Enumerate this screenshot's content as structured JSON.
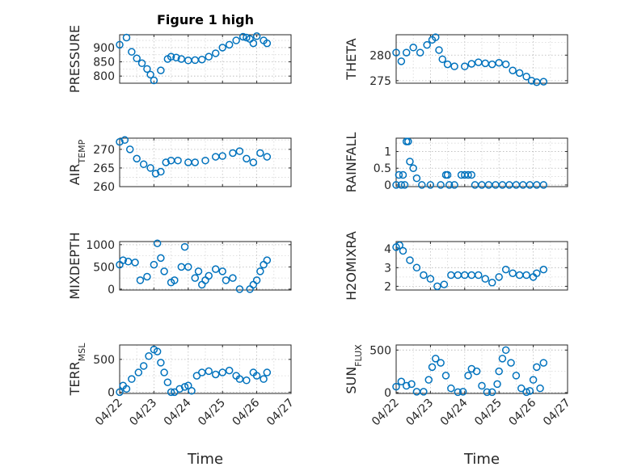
{
  "chart_data": [
    {
      "id": "pressure",
      "type": "scatter",
      "title": "Figure 1 high",
      "xlabel": "",
      "ylabel": "PRESSURE",
      "ylim": [
        775,
        945
      ],
      "yticks": [
        800,
        850,
        900
      ],
      "xlim": [
        0,
        5
      ],
      "xticks": [
        0,
        1,
        2,
        3,
        4,
        5
      ],
      "xticklabels": [],
      "x": [
        0.0,
        0.2,
        0.35,
        0.5,
        0.65,
        0.8,
        0.9,
        1.0,
        1.2,
        1.4,
        1.5,
        1.65,
        1.8,
        2.0,
        2.2,
        2.4,
        2.6,
        2.8,
        3.0,
        3.2,
        3.4,
        3.6,
        3.7,
        3.8,
        3.9,
        4.0,
        4.2,
        4.3
      ],
      "y": [
        910,
        935,
        885,
        862,
        845,
        825,
        805,
        785,
        820,
        860,
        868,
        865,
        860,
        855,
        856,
        858,
        868,
        880,
        900,
        910,
        925,
        938,
        935,
        930,
        915,
        940,
        925,
        915
      ]
    },
    {
      "id": "theta",
      "type": "scatter",
      "title": "",
      "xlabel": "",
      "ylabel": "THETA",
      "ylim": [
        274.5,
        284
      ],
      "yticks": [
        275,
        280
      ],
      "xlim": [
        0,
        5
      ],
      "xticks": [
        0,
        1,
        2,
        3,
        4,
        5
      ],
      "xticklabels": [],
      "x": [
        0.0,
        0.15,
        0.3,
        0.5,
        0.7,
        0.9,
        1.05,
        1.15,
        1.25,
        1.35,
        1.5,
        1.7,
        2.0,
        2.2,
        2.4,
        2.6,
        2.8,
        3.0,
        3.2,
        3.4,
        3.6,
        3.8,
        3.95,
        4.1,
        4.3
      ],
      "y": [
        280.5,
        278.8,
        280.5,
        281.5,
        280.5,
        282,
        283,
        283.5,
        281,
        279.2,
        278.2,
        277.8,
        277.8,
        278.3,
        278.6,
        278.4,
        278.2,
        278.5,
        278.2,
        277,
        276.5,
        275.8,
        275,
        274.7,
        274.8
      ]
    },
    {
      "id": "air_temp",
      "type": "scatter",
      "title": "",
      "xlabel": "",
      "ylabel": "AIR_TEMP",
      "ylim": [
        260,
        273
      ],
      "yticks": [
        260,
        265,
        270
      ],
      "xlim": [
        0,
        5
      ],
      "xticks": [
        0,
        1,
        2,
        3,
        4,
        5
      ],
      "xticklabels": [],
      "x": [
        0.0,
        0.15,
        0.3,
        0.5,
        0.7,
        0.9,
        1.05,
        1.2,
        1.35,
        1.5,
        1.7,
        2.0,
        2.2,
        2.5,
        2.8,
        3.0,
        3.3,
        3.5,
        3.7,
        3.9,
        4.1,
        4.3
      ],
      "y": [
        272,
        272.5,
        270,
        267.5,
        266,
        265,
        263.5,
        264,
        266.5,
        267,
        267,
        266.5,
        266.5,
        267,
        268,
        268.2,
        269,
        269.5,
        267.5,
        266.5,
        269,
        268
      ]
    },
    {
      "id": "rainfall",
      "type": "scatter",
      "title": "",
      "xlabel": "",
      "ylabel": "RAINFALL",
      "ylim": [
        -0.05,
        1.4
      ],
      "yticks": [
        0,
        0.5,
        1
      ],
      "xlim": [
        0,
        5
      ],
      "xticks": [
        0,
        1,
        2,
        3,
        4,
        5
      ],
      "xticklabels": [],
      "x": [
        0.0,
        0.08,
        0.15,
        0.2,
        0.25,
        0.3,
        0.35,
        0.4,
        0.5,
        0.6,
        0.75,
        1.0,
        1.3,
        1.45,
        1.5,
        1.55,
        1.7,
        1.9,
        2.0,
        2.1,
        2.2,
        2.3,
        2.5,
        2.7,
        2.9,
        3.1,
        3.3,
        3.5,
        3.7,
        3.9,
        4.1,
        4.3
      ],
      "y": [
        0,
        0.3,
        0,
        0.3,
        0,
        1.3,
        1.3,
        0.7,
        0.5,
        0.2,
        0,
        0,
        0,
        0.3,
        0.3,
        0,
        0,
        0.3,
        0.3,
        0.3,
        0.3,
        0,
        0,
        0,
        0,
        0,
        0,
        0,
        0,
        0,
        0,
        0
      ]
    },
    {
      "id": "mixdepth",
      "type": "scatter",
      "title": "",
      "xlabel": "",
      "ylabel": "MIXDEPTH",
      "ylim": [
        -20,
        1070
      ],
      "yticks": [
        0,
        500,
        1000
      ],
      "xlim": [
        0,
        5
      ],
      "xticks": [
        0,
        1,
        2,
        3,
        4,
        5
      ],
      "xticklabels": [],
      "x": [
        0.0,
        0.1,
        0.25,
        0.45,
        0.6,
        0.8,
        1.0,
        1.1,
        1.2,
        1.3,
        1.5,
        1.6,
        1.8,
        1.9,
        2.0,
        2.2,
        2.3,
        2.4,
        2.5,
        2.6,
        2.8,
        3.0,
        3.1,
        3.3,
        3.5,
        3.8,
        3.9,
        4.0,
        4.1,
        4.2,
        4.3
      ],
      "y": [
        550,
        650,
        620,
        600,
        200,
        280,
        550,
        1030,
        700,
        400,
        150,
        200,
        500,
        950,
        500,
        250,
        400,
        100,
        200,
        300,
        450,
        400,
        200,
        250,
        0,
        0,
        100,
        200,
        400,
        550,
        650
      ]
    },
    {
      "id": "h2omixra",
      "type": "scatter",
      "title": "",
      "xlabel": "",
      "ylabel": "H2OMIXRA",
      "ylim": [
        1.8,
        4.4
      ],
      "yticks": [
        2,
        3,
        4
      ],
      "xlim": [
        0,
        5
      ],
      "xticks": [
        0,
        1,
        2,
        3,
        4,
        5
      ],
      "xticklabels": [],
      "x": [
        0.0,
        0.1,
        0.2,
        0.4,
        0.6,
        0.8,
        1.0,
        1.2,
        1.4,
        1.6,
        1.8,
        2.0,
        2.2,
        2.4,
        2.6,
        2.8,
        3.0,
        3.2,
        3.4,
        3.6,
        3.8,
        4.0,
        4.1,
        4.3
      ],
      "y": [
        4.1,
        4.2,
        3.9,
        3.4,
        3.0,
        2.6,
        2.4,
        2.0,
        2.1,
        2.6,
        2.6,
        2.6,
        2.6,
        2.6,
        2.4,
        2.2,
        2.5,
        2.9,
        2.7,
        2.6,
        2.6,
        2.5,
        2.7,
        2.9
      ]
    },
    {
      "id": "terr_msl",
      "type": "scatter",
      "title": "",
      "xlabel": "Time",
      "ylabel": "TERR_MSL",
      "ylim": [
        -20,
        720
      ],
      "yticks": [
        0,
        500
      ],
      "xlim": [
        0,
        5
      ],
      "xticks": [
        0,
        1,
        2,
        3,
        4,
        5
      ],
      "xticklabels": [
        "04/22",
        "04/23",
        "04/24",
        "04/25",
        "04/26",
        "04/27"
      ],
      "x": [
        0.0,
        0.1,
        0.2,
        0.35,
        0.55,
        0.7,
        0.85,
        1.0,
        1.1,
        1.2,
        1.3,
        1.4,
        1.5,
        1.6,
        1.75,
        1.9,
        2.0,
        2.1,
        2.25,
        2.4,
        2.6,
        2.8,
        3.0,
        3.2,
        3.4,
        3.5,
        3.7,
        3.9,
        4.0,
        4.2,
        4.3
      ],
      "y": [
        0,
        100,
        50,
        200,
        300,
        400,
        550,
        650,
        620,
        450,
        300,
        150,
        0,
        0,
        50,
        80,
        100,
        20,
        250,
        300,
        320,
        270,
        300,
        330,
        250,
        200,
        180,
        300,
        250,
        200,
        300
      ]
    },
    {
      "id": "sun_flux",
      "type": "scatter",
      "title": "",
      "xlabel": "Time",
      "ylabel": "SUN_FLUX",
      "ylim": [
        -10,
        560
      ],
      "yticks": [
        0,
        500
      ],
      "xlim": [
        0,
        5
      ],
      "xticks": [
        0,
        1,
        2,
        3,
        4,
        5
      ],
      "xticklabels": [
        "04/22",
        "04/23",
        "04/24",
        "04/25",
        "04/26",
        "04/27"
      ],
      "x": [
        0.0,
        0.15,
        0.3,
        0.45,
        0.6,
        0.8,
        0.95,
        1.05,
        1.15,
        1.3,
        1.45,
        1.6,
        1.8,
        1.95,
        2.1,
        2.2,
        2.35,
        2.5,
        2.65,
        2.8,
        2.95,
        3.0,
        3.1,
        3.2,
        3.35,
        3.5,
        3.65,
        3.8,
        3.9,
        4.0,
        4.1,
        4.2,
        4.3
      ],
      "y": [
        70,
        130,
        80,
        100,
        10,
        10,
        150,
        300,
        400,
        350,
        200,
        50,
        5,
        10,
        200,
        280,
        250,
        80,
        5,
        5,
        100,
        250,
        400,
        500,
        350,
        200,
        50,
        5,
        20,
        150,
        300,
        50,
        350
      ]
    }
  ]
}
